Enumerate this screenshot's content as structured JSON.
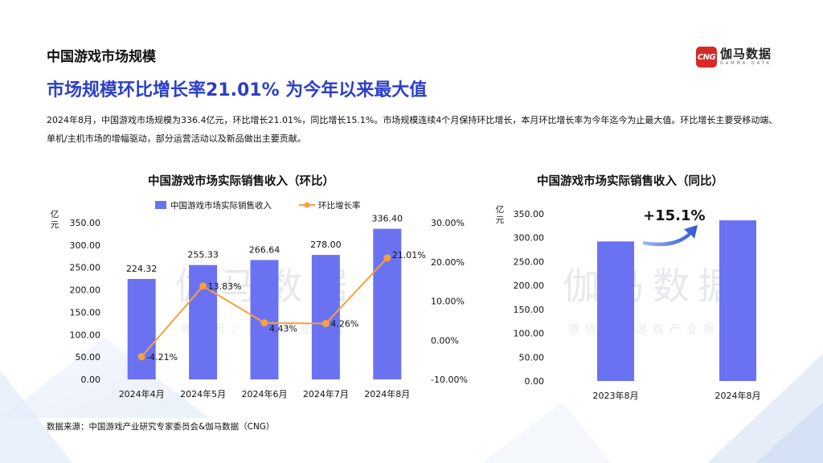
{
  "header": {
    "section_title": "中国游戏市场规模",
    "headline": "市场规模环比增长率21.01% 为今年以来最大值",
    "paragraph": "2024年8月，中国游戏市场规模为336.4亿元，环比增长21.01%，同比增长15.1%。市场规模连续4个月保持环比增长，本月环比增长率为今年迄今为止最大值。环比增长主要受移动端、单机/主机市场的增幅驱动，部分运营活动以及新品做出主要贡献。"
  },
  "logo": {
    "mark": "CNG",
    "name": "伽马数据",
    "subtitle": "GAMMA DATA"
  },
  "watermarks": [
    {
      "main": "伽马数据",
      "sub": "微信号：游戏产业报告"
    },
    {
      "main": "伽马数据",
      "sub": "微信号：游戏产业报告"
    }
  ],
  "colors": {
    "bar": "#6b72f2",
    "line": "#f7a13c",
    "headline": "#2b3fc9",
    "arrow": "#2f57d6"
  },
  "chart_data": [
    {
      "type": "bar+line",
      "title": "中国游戏市场实际销售收入（环比）",
      "ylabel": "亿元",
      "categories": [
        "2024年4月",
        "2024年5月",
        "2024年6月",
        "2024年7月",
        "2024年8月"
      ],
      "series": [
        {
          "name": "中国游戏市场实际销售收入",
          "type": "bar",
          "values": [
            224.32,
            255.33,
            266.64,
            278.0,
            336.4
          ],
          "labels": [
            "224.32",
            "255.33",
            "266.64",
            "278.00",
            "336.40"
          ],
          "axis": "left"
        },
        {
          "name": "环比增长率",
          "type": "line",
          "values": [
            -4.21,
            13.83,
            4.43,
            4.26,
            21.01
          ],
          "labels": [
            "-4.21%",
            "13.83%",
            "4.43%",
            "4.26%",
            "21.01%"
          ],
          "axis": "right"
        }
      ],
      "left_axis": {
        "min": 0,
        "max": 350,
        "ticks": [
          "0.00",
          "50.00",
          "100.00",
          "150.00",
          "200.00",
          "250.00",
          "300.00",
          "350.00"
        ]
      },
      "right_axis": {
        "min": -10,
        "max": 30,
        "ticks": [
          "-10.00%",
          "0.00%",
          "10.00%",
          "20.00%",
          "30.00%"
        ]
      },
      "legend_position": "top"
    },
    {
      "type": "bar",
      "title": "中国游戏市场实际销售收入（同比）",
      "ylabel": "亿元",
      "categories": [
        "2023年8月",
        "2024年8月"
      ],
      "values": [
        292.3,
        336.4
      ],
      "left_axis": {
        "min": 0,
        "max": 350,
        "ticks": [
          "0.00",
          "50.00",
          "100.00",
          "150.00",
          "200.00",
          "250.00",
          "300.00",
          "350.00"
        ]
      },
      "annotation": "+15.1%"
    }
  ],
  "footer": {
    "source": "数据来源：中国游戏产业研究专家委员会&伽马数据（CNG）"
  }
}
